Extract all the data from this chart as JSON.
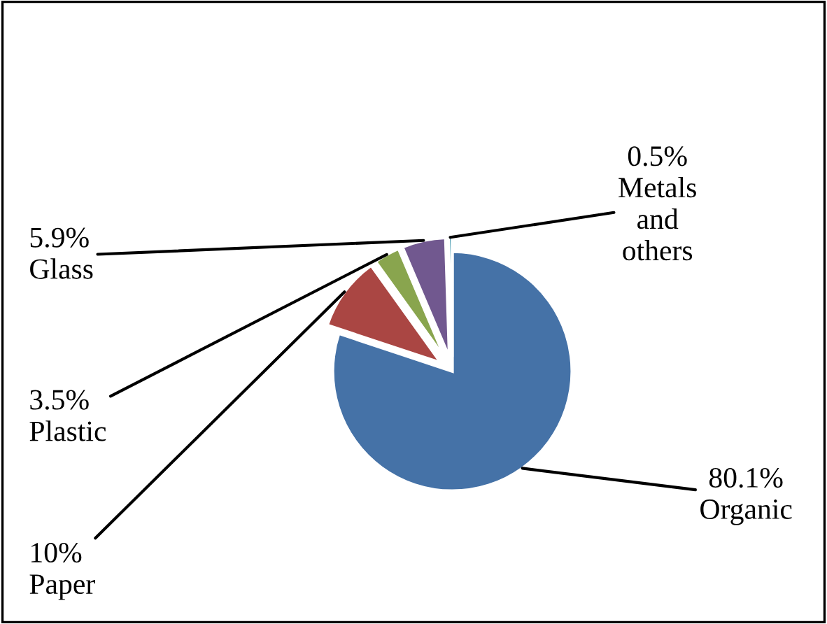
{
  "chart_data": {
    "type": "pie",
    "categories": [
      "Organic",
      "Paper",
      "Plastic",
      "Glass",
      "Metals and others"
    ],
    "values": [
      80.1,
      10,
      3.5,
      5.9,
      0.5
    ],
    "colors": [
      "#4572a7",
      "#aa4643",
      "#89a54e",
      "#71588f",
      "#4198af"
    ],
    "value_labels": [
      "80.1%",
      "10%",
      "3.5%",
      "5.9%",
      "0.5%"
    ],
    "legend": false
  }
}
